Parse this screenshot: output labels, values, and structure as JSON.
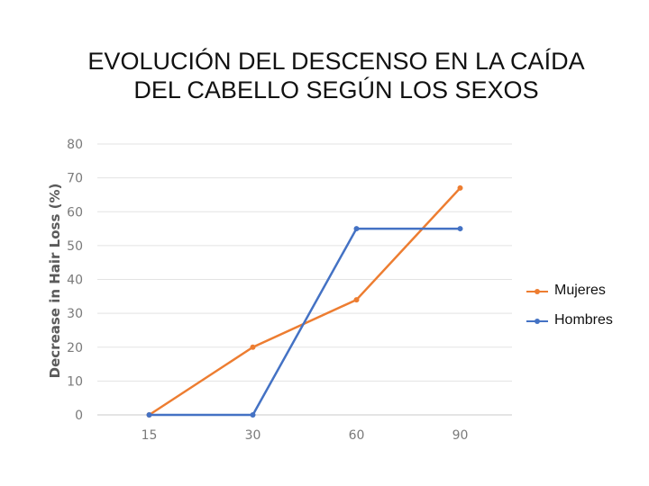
{
  "title_lines": [
    "EVOLUCIÓN DEL DESCENSO EN LA CAÍDA",
    "DEL CABELLO SEGÚN LOS SEXOS"
  ],
  "chart_data": {
    "type": "line",
    "title": "EVOLUCIÓN DEL DESCENSO EN LA CAÍDA DEL CABELLO SEGÚN LOS SEXOS",
    "xlabel": "",
    "ylabel": "Decrease in Hair Loss (%)",
    "categories": [
      "15",
      "30",
      "60",
      "90"
    ],
    "yticks": [
      "0",
      "10",
      "20",
      "30",
      "40",
      "50",
      "60",
      "70",
      "80"
    ],
    "ylim": [
      0,
      80
    ],
    "grid": true,
    "legend_position": "right",
    "series": [
      {
        "name": "Mujeres",
        "color": "#ED7D31",
        "values": [
          0,
          20,
          34,
          67
        ]
      },
      {
        "name": "Hombres",
        "color": "#4472C4",
        "values": [
          0,
          0,
          55,
          55
        ]
      }
    ]
  }
}
